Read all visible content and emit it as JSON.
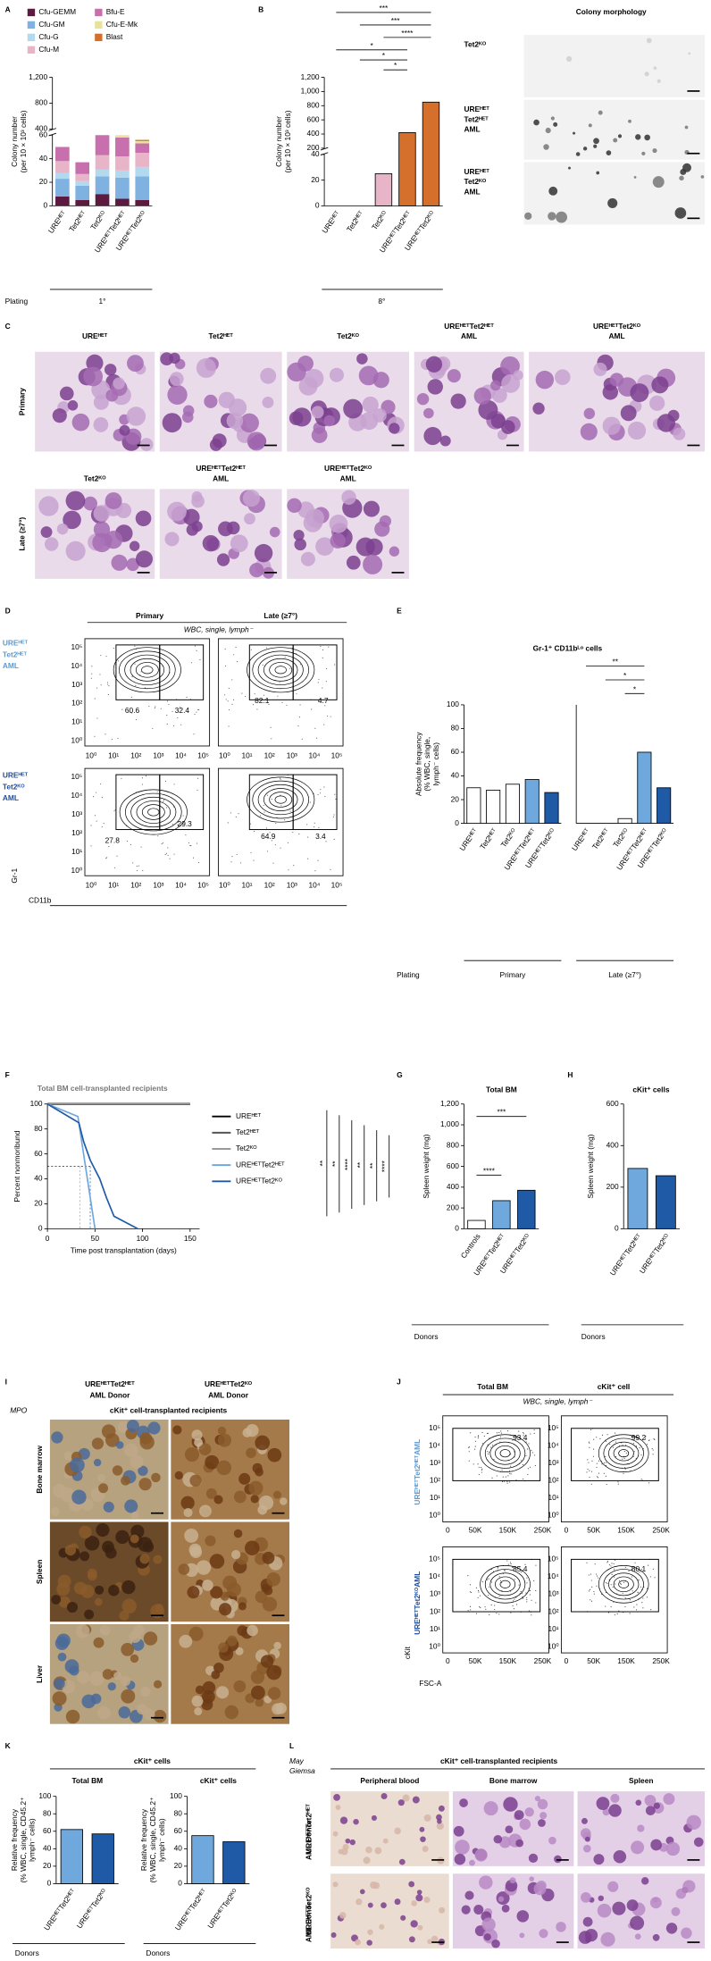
{
  "chart_data": [
    {
      "type": "stacked_bar",
      "ylabel": [
        "Colony number",
        "(per 10 × 10³ cells)"
      ],
      "categories": [
        "UREᴴᴱᵀ",
        "Tet2ᴴᴱᵀ",
        "Tet2ᴷᴼ",
        "UREᴴᴱᵀTet2ᴴᴱᵀ",
        "UREᴴᴱᵀTet2ᴷᴼ"
      ],
      "series": [
        {
          "name": "Cfu-GEMM",
          "color": "#5b1a3e",
          "values": [
            8,
            5,
            10,
            6,
            5
          ]
        },
        {
          "name": "Cfu-GM",
          "color": "#7fb2e0",
          "values": [
            15,
            12,
            15,
            18,
            20
          ]
        },
        {
          "name": "Cfu-G",
          "color": "#b3d9ef",
          "values": [
            5,
            4,
            6,
            6,
            8
          ]
        },
        {
          "name": "Cfu-M",
          "color": "#e8b4c8",
          "values": [
            10,
            6,
            12,
            12,
            12
          ]
        },
        {
          "name": "Bfu-E",
          "color": "#c86fad",
          "values": [
            12,
            10,
            18,
            16,
            8
          ]
        },
        {
          "name": "Cfu-E-Mk",
          "color": "#e8e39a",
          "values": [
            0,
            0,
            1,
            2,
            2
          ]
        },
        {
          "name": "Blast",
          "color": "#d4702b",
          "values": [
            0,
            0,
            0,
            0,
            1
          ]
        }
      ],
      "ylim": [
        0,
        1200
      ],
      "ybreak": [
        60,
        400
      ],
      "yticks": [
        0,
        20,
        40,
        60,
        400,
        800,
        {
          "value": 1200,
          "label": "1,200"
        }
      ]
    },
    {
      "type": "bar",
      "ylabel": [
        "Colony number",
        "(per 10 × 10³ cells)"
      ],
      "categories": [
        "UREᴴᴱᵀ",
        "Tet2ᴴᴱᵀ",
        "Tet2ᴷᴼ",
        "UREᴴᴱᵀTet2ᴴᴱᵀ",
        "UREᴴᴱᵀTet2ᴷᴼ"
      ],
      "values": [
        0,
        0,
        25,
        420,
        850
      ],
      "colors": [
        "#e8b4c8",
        "#e8b4c8",
        "#e8b4c8",
        "#d4702b",
        "#d4702b"
      ],
      "ylim": [
        0,
        1200
      ],
      "ybreak": [
        40,
        200
      ],
      "yticks": [
        0,
        20,
        40,
        200,
        400,
        600,
        800,
        {
          "value": 1000,
          "label": "1,000"
        },
        {
          "value": 1200,
          "label": "1,200"
        }
      ]
    },
    {
      "type": "bar",
      "title": "Gr-1⁺ CD11bᴸᵒ cells",
      "ylabel": [
        "Absolute frequency",
        "(% WBC, single,",
        "lymph⁻ cells)"
      ],
      "categories": [
        "UREᴴᴱᵀ",
        "Tet2ᴴᴱᵀ",
        "Tet2ᴷᴼ",
        "UREᴴᴱᵀTet2ᴴᴱᵀ",
        "UREᴴᴱᵀTet2ᴷᴼ"
      ],
      "values": [
        30,
        28,
        33,
        37,
        26
      ],
      "colors": [
        "#ffffff",
        "#ffffff",
        "#ffffff",
        "#6fa8dc",
        "#1f5aa6"
      ],
      "ylim": [
        0,
        100
      ],
      "yticks": [
        0,
        20,
        40,
        60,
        80,
        100
      ]
    },
    {
      "type": "bar",
      "categories": [
        "UREᴴᴱᵀ",
        "Tet2ᴴᴱᵀ",
        "Tet2ᴷᴼ",
        "UREᴴᴱᵀTet2ᴴᴱᵀ",
        "UREᴴᴱᵀTet2ᴷᴼ"
      ],
      "values": [
        0,
        0,
        4,
        60,
        30
      ],
      "colors": [
        "#ffffff",
        "#ffffff",
        "#ffffff",
        "#6fa8dc",
        "#1f5aa6"
      ],
      "ylim": [
        0,
        100
      ]
    },
    {
      "type": "line",
      "title": "Total BM cell-transplanted recipients",
      "ylabel": "Percent nonmoribund",
      "xlabel": "Time post transplantation (days)",
      "xlim": [
        0,
        160
      ],
      "xticks": [
        0,
        50,
        100,
        150
      ],
      "ylim": [
        0,
        100
      ],
      "yticks": [
        0,
        20,
        40,
        60,
        80,
        100
      ],
      "series": [
        {
          "name": "UREᴴᴱᵀ",
          "color": "#000000",
          "x": [
            0,
            150
          ],
          "values": [
            100,
            100
          ]
        },
        {
          "name": "Tet2ᴴᴱᵀ",
          "color": "#555555",
          "x": [
            0,
            150
          ],
          "values": [
            100,
            100
          ]
        },
        {
          "name": "Tet2ᴷᴼ",
          "color": "#999999",
          "x": [
            0,
            150
          ],
          "values": [
            100,
            100
          ]
        },
        {
          "name": "UREᴴᴱᵀTet2ᴴᴱᵀ",
          "color": "#6fa8dc",
          "x": [
            0,
            32,
            35,
            38,
            41,
            44,
            47,
            50
          ],
          "values": [
            100,
            90,
            75,
            60,
            45,
            30,
            15,
            0
          ]
        },
        {
          "name": "UREᴴᴱᵀTet2ᴷᴼ",
          "color": "#1f5aa6",
          "x": [
            0,
            33,
            38,
            45,
            55,
            62,
            70,
            95
          ],
          "values": [
            100,
            85,
            70,
            55,
            40,
            25,
            10,
            0
          ]
        }
      ]
    },
    {
      "type": "bar",
      "title": "Total BM",
      "ylabel": "Spleen weight (mg)",
      "categories": [
        "Controls",
        "UREᴴᴱᵀTet2ᴴᴱᵀ",
        "UREᴴᴱᵀTet2ᴷᴼ"
      ],
      "values": [
        80,
        270,
        370
      ],
      "colors": [
        "#ffffff",
        "#6fa8dc",
        "#1f5aa6"
      ],
      "ylim": [
        0,
        1200
      ],
      "yticks": [
        0,
        200,
        400,
        600,
        800,
        {
          "value": 1000,
          "label": "1,000"
        },
        {
          "value": 1200,
          "label": "1,200"
        }
      ]
    },
    {
      "type": "bar",
      "title": "cKit⁺ cells",
      "ylabel": "Spleen weight (mg)",
      "categories": [
        "UREᴴᴱᵀTet2ᴴᴱᵀ",
        "UREᴴᴱᵀTet2ᴷᴼ"
      ],
      "values": [
        290,
        255
      ],
      "colors": [
        "#6fa8dc",
        "#1f5aa6"
      ],
      "ylim": [
        0,
        600
      ],
      "yticks": [
        0,
        200,
        400,
        600
      ]
    },
    {
      "type": "bar",
      "title": "Total BM",
      "ylabel": [
        "Relative frequency",
        "(% WBC, single, CD45.2⁺",
        "lymph⁻ cells)"
      ],
      "categories": [
        "UREᴴᴱᵀTet2ᴴᴱᵀ",
        "UREᴴᴱᵀTet2ᴷᴼ"
      ],
      "values": [
        62,
        57
      ],
      "colors": [
        "#6fa8dc",
        "#1f5aa6"
      ],
      "ylim": [
        0,
        100
      ],
      "yticks": [
        0,
        20,
        40,
        60,
        80,
        100
      ]
    },
    {
      "type": "bar",
      "title": "cKit⁺ cells",
      "ylabel": [
        "Relative frequency",
        "(% WBC, single, CD45.2⁺",
        "lymph⁻ cells)"
      ],
      "categories": [
        "UREᴴᴱᵀTet2ᴴᴱᵀ",
        "UREᴴᴱᵀTet2ᴷᴼ"
      ],
      "values": [
        55,
        48
      ],
      "colors": [
        "#6fa8dc",
        "#1f5aa6"
      ],
      "ylim": [
        0,
        100
      ],
      "yticks": [
        0,
        20,
        40,
        60,
        80,
        100
      ]
    }
  ],
  "letters": [
    "A",
    "B",
    "C",
    "D",
    "E",
    "F",
    "G",
    "H",
    "I",
    "J",
    "K",
    "L"
  ],
  "A": {
    "plating": "Plating",
    "passage": "1°"
  },
  "B": {
    "passage": "8°",
    "significance": [
      "***",
      "***",
      "****",
      "*",
      "*",
      "*"
    ],
    "morphology_title": "Colony morphology",
    "morphology_rows": [
      [
        "Tet2ᴷᴼ"
      ],
      [
        "UREᴴᴱᵀ",
        "Tet2ᴴᴱᵀ",
        "AML"
      ],
      [
        "UREᴴᴱᵀ",
        "Tet2ᴷᴼ",
        "AML"
      ]
    ]
  },
  "C": {
    "rows": [
      "Primary",
      "Late (≥7°)"
    ],
    "primary_titles": [
      [
        "UREᴴᴱᵀ"
      ],
      [
        "Tet2ᴴᴱᵀ"
      ],
      [
        "Tet2ᴷᴼ"
      ],
      [
        "UREᴴᴱᵀTet2ᴴᴱᵀ",
        "AML"
      ],
      [
        "UREᴴᴱᵀTet2ᴷᴼ",
        "AML"
      ]
    ],
    "late_titles": [
      [
        "Tet2ᴷᴼ"
      ],
      [
        "UREᴴᴱᵀTet2ᴴᴱᵀ",
        "AML"
      ],
      [
        "UREᴴᴱᵀTet2ᴷᴼ",
        "AML"
      ]
    ]
  },
  "D": {
    "columns": [
      "Primary",
      "Late (≥7°)"
    ],
    "gating": "WBC, single, lymph⁻",
    "rows": [
      [
        "UREᴴᴱᵀ",
        "Tet2ᴴᴱᵀ",
        "AML"
      ],
      [
        "UREᴴᴱᵀ",
        "Tet2ᴷᴼ",
        "AML"
      ]
    ],
    "gates": [
      [
        60.6,
        32.4
      ],
      [
        82.1,
        4.7
      ],
      [
        27.8,
        29.3
      ],
      [
        64.9,
        3.4
      ]
    ],
    "ticks": [
      "10⁰",
      "10¹",
      "10²",
      "10³",
      "10⁴",
      "10⁵"
    ],
    "yaxis": "Gr-1",
    "xaxis": "CD11b"
  },
  "E": {
    "plating": "Plating",
    "groups": [
      "Primary",
      "Late (≥7°)"
    ],
    "significance": [
      "**",
      "*",
      "*"
    ]
  },
  "F": {
    "significance": [
      "**",
      "**",
      "****",
      "**",
      "**",
      "****"
    ]
  },
  "G": {
    "significance": [
      "****",
      "***"
    ],
    "donors": "Donors"
  },
  "H": {
    "donors": "Donors"
  },
  "I": {
    "columns": [
      [
        "UREᴴᴱᵀTet2ᴴᴱᵀ",
        "AML Donor"
      ],
      [
        "UREᴴᴱᵀTet2ᴷᴼ",
        "AML Donor"
      ]
    ],
    "stain": "MPO",
    "subtitle": "cKit⁺ cell-transplanted recipients",
    "rows": [
      "Bone marrow",
      "Spleen",
      "Liver"
    ]
  },
  "J": {
    "columns": [
      "Total BM",
      "cKit⁺ cell"
    ],
    "gating": "WBC, single, lymph⁻",
    "rows": [
      "UREᴴᴱᵀTet2ᴴᴱᵀAML",
      "UREᴴᴱᵀTet2ᴷᴼAML"
    ],
    "gates": [
      93.4,
      99.2,
      85.4,
      80.1
    ],
    "yticks": [
      "10⁰",
      "10¹",
      "10²",
      "10³",
      "10⁴",
      "10⁵"
    ],
    "xticks": [
      0,
      "50K",
      "150K",
      "250K"
    ],
    "yaxis": "cKit",
    "xaxis": "FSC-A"
  },
  "K": {
    "title": "cKit⁺ cells",
    "donors": "Donors"
  },
  "L": {
    "stain": [
      "May",
      "Giemsa"
    ],
    "subtitle": "cKit⁺ cell-transplanted recipients",
    "columns": [
      "Peripheral blood",
      "Bone marrow",
      "Spleen"
    ],
    "rows": [
      [
        "UREᴴᴱᵀTet2ᴴᴱᵀ",
        "AML Donor"
      ],
      [
        "UREᴴᴱᵀTet2ᴷᴼ",
        "AML Donor"
      ]
    ]
  }
}
